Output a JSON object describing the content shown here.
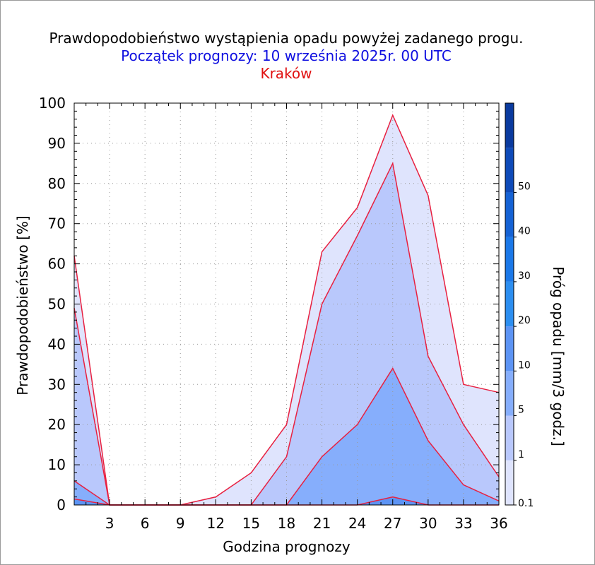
{
  "chart_data": {
    "type": "area",
    "title": "Prawdopodobieństwo wystąpienia opadu powyżej zadanego progu.",
    "subtitle": "Początek prognozy: 10 września 2025r. 00 UTC",
    "location": "Kraków",
    "xlabel": "Godzina prognozy",
    "ylabel": "Prawdopodobieństwo [%]",
    "colorbar_label": "Próg opadu [mm/3 godz.]",
    "xlim": [
      0,
      36
    ],
    "ylim": [
      0,
      100
    ],
    "x": [
      0,
      3,
      6,
      9,
      12,
      15,
      18,
      21,
      24,
      27,
      30,
      33,
      36
    ],
    "x_ticks": [
      "3",
      "6",
      "9",
      "12",
      "15",
      "18",
      "21",
      "24",
      "27",
      "30",
      "33",
      "36"
    ],
    "y_ticks": [
      "0",
      "10",
      "20",
      "30",
      "40",
      "50",
      "60",
      "70",
      "80",
      "90",
      "100"
    ],
    "series": [
      {
        "threshold": 0.1,
        "color": "#dfe4fd",
        "values": [
          62,
          0,
          0,
          0,
          2,
          8,
          20,
          63,
          74,
          97,
          77,
          30,
          28
        ]
      },
      {
        "threshold": 1,
        "color": "#b9c8fc",
        "values": [
          49,
          0,
          0,
          0,
          0,
          0,
          12,
          50,
          67,
          85,
          37,
          20,
          7
        ]
      },
      {
        "threshold": 5,
        "color": "#86aefc",
        "values": [
          6,
          0,
          0,
          0,
          0,
          0,
          0,
          12,
          20,
          34,
          16,
          5,
          1
        ]
      },
      {
        "threshold": 10,
        "color": "#5d94f4",
        "values": [
          1.5,
          0,
          0,
          0,
          0,
          0,
          0,
          0,
          0,
          2,
          0,
          0,
          0
        ]
      }
    ],
    "colorbar": {
      "labels": [
        "0.1",
        "1",
        "5",
        "10",
        "20",
        "30",
        "40",
        "50"
      ],
      "colors": [
        "#dfe4fd",
        "#b9c8fc",
        "#86aefc",
        "#5d94f4",
        "#2c8ef0",
        "#1b78e8",
        "#1562d4",
        "#0e4ab8",
        "#0a3a9e"
      ]
    },
    "line_color": "#e82040",
    "grid": true
  }
}
